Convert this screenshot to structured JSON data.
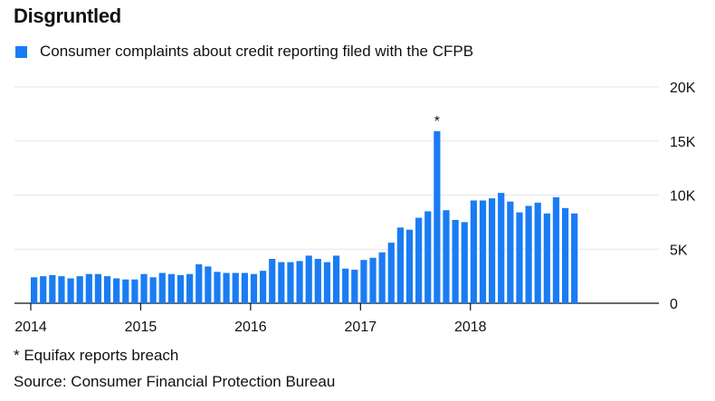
{
  "title": "Disgruntled",
  "accent_color": "#1a7cf5",
  "chart_data": {
    "type": "bar",
    "series": [
      {
        "name": "Consumer complaints about credit reporting filed with the CFPB",
        "color": "#1a7cf5"
      }
    ],
    "x": [
      "2014-01",
      "2014-02",
      "2014-03",
      "2014-04",
      "2014-05",
      "2014-06",
      "2014-07",
      "2014-08",
      "2014-09",
      "2014-10",
      "2014-11",
      "2014-12",
      "2015-01",
      "2015-02",
      "2015-03",
      "2015-04",
      "2015-05",
      "2015-06",
      "2015-07",
      "2015-08",
      "2015-09",
      "2015-10",
      "2015-11",
      "2015-12",
      "2016-01",
      "2016-02",
      "2016-03",
      "2016-04",
      "2016-05",
      "2016-06",
      "2016-07",
      "2016-08",
      "2016-09",
      "2016-10",
      "2016-11",
      "2016-12",
      "2017-01",
      "2017-02",
      "2017-03",
      "2017-04",
      "2017-05",
      "2017-06",
      "2017-07",
      "2017-08",
      "2017-09",
      "2017-10",
      "2017-11",
      "2017-12",
      "2018-01",
      "2018-02",
      "2018-03",
      "2018-04",
      "2018-05",
      "2018-06",
      "2018-07",
      "2018-08",
      "2018-09",
      "2018-10",
      "2018-11",
      "2018-12",
      "2019-01",
      "2019-02",
      "2019-03",
      "2019-04",
      "2019-05",
      "2019-06",
      "2019-07",
      "2019-08",
      "2019-09",
      "2019-10",
      "2019-11",
      "2019-12",
      "2020-01",
      "2020-02",
      "2020-03",
      "2020-04"
    ],
    "values": [
      2400,
      2500,
      2600,
      2500,
      2300,
      2500,
      2700,
      2700,
      2500,
      2300,
      2200,
      2200,
      2700,
      2400,
      2800,
      2700,
      2600,
      2700,
      3600,
      3400,
      2900,
      2800,
      2800,
      2800,
      2700,
      3000,
      4100,
      3800,
      3800,
      3900,
      4400,
      4100,
      3800,
      4400,
      3200,
      3100,
      4000,
      4200,
      4700,
      5600,
      7000,
      6800,
      7900,
      8500,
      15900,
      8600,
      7700,
      7500,
      9500,
      9500,
      9700,
      10200,
      9400,
      8400,
      9000,
      9300,
      8300,
      9800,
      8800,
      8300,
      0,
      0,
      0,
      0,
      0,
      0,
      0,
      0,
      0,
      0,
      0,
      0,
      0,
      0,
      0,
      0
    ],
    "ylim": [
      0,
      20000
    ],
    "y_ticks": [
      "0",
      "5K",
      "10K",
      "15K",
      "20K"
    ],
    "x_ticks": [
      "2014",
      "2015",
      "2016",
      "2017",
      "2018"
    ],
    "annotations": [
      {
        "x": "2017-09",
        "label": "*"
      }
    ],
    "grid": true,
    "legend": "top-left"
  },
  "footnote": "* Equifax reports breach",
  "source": "Source: Consumer Financial Protection Bureau"
}
